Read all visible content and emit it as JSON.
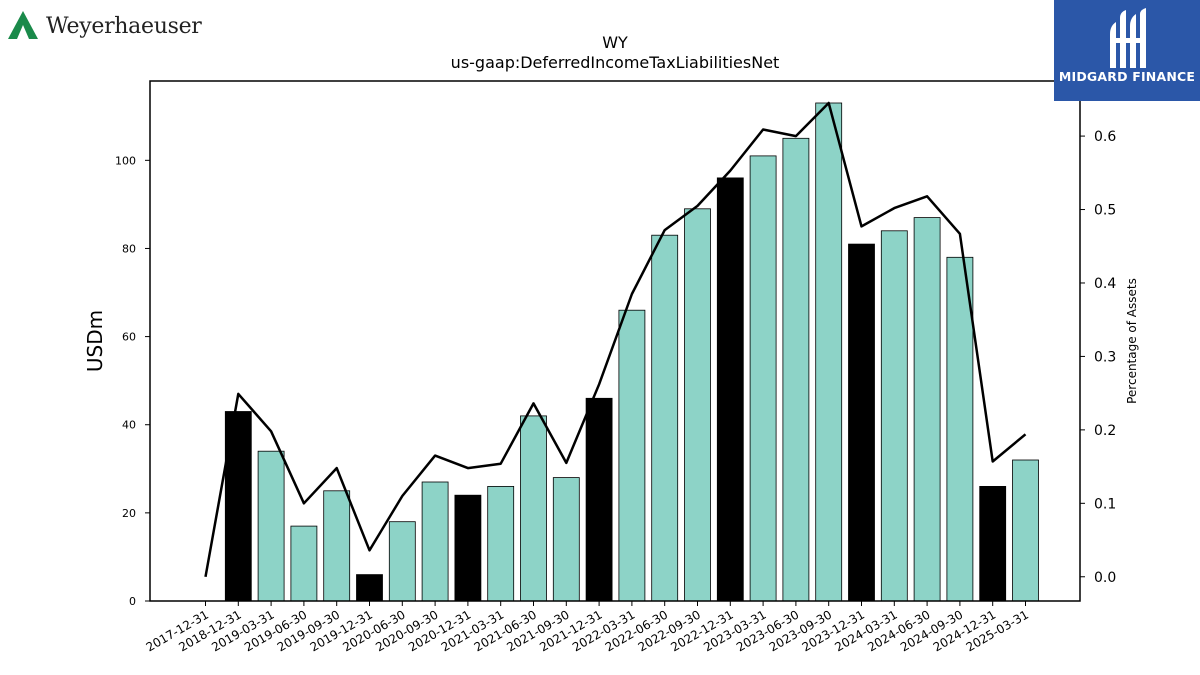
{
  "logos": {
    "company": "Weyerhaeuser",
    "brand": "MIDGARD FINANCE"
  },
  "colors": {
    "bar_quarter": "#8dd3c7",
    "bar_year_end": "#000000",
    "line": "#000000",
    "company_logo": "#1a8a4a",
    "brand_background": "#2b57a8"
  },
  "chart_data": {
    "type": "bar",
    "title": "WY",
    "subtitle": "us-gaap:DeferredIncomeTaxLiabilitiesNet",
    "ylabel": "USDm",
    "y2label": "Percentage of Assets",
    "ylim": [
      0,
      118
    ],
    "y2lim": [
      -0.033,
      0.675
    ],
    "yticks": [
      0,
      20,
      40,
      60,
      80,
      100
    ],
    "y2ticks": [
      "0.0",
      "0.1",
      "0.2",
      "0.3",
      "0.4",
      "0.5",
      "0.6"
    ],
    "categories": [
      "2017-12-31",
      "2018-12-31",
      "2019-03-31",
      "2019-06-30",
      "2019-09-30",
      "2019-12-31",
      "2020-06-30",
      "2020-09-30",
      "2020-12-31",
      "2021-03-31",
      "2021-06-30",
      "2021-09-30",
      "2021-12-31",
      "2022-03-31",
      "2022-06-30",
      "2022-09-30",
      "2022-12-31",
      "2023-03-31",
      "2023-06-30",
      "2023-09-30",
      "2023-12-31",
      "2024-03-31",
      "2024-06-30",
      "2024-09-30",
      "2024-12-31",
      "2025-03-31"
    ],
    "series": [
      {
        "type": "bar",
        "values": [
          null,
          43,
          34,
          17,
          25,
          6,
          18,
          27,
          24,
          26,
          42,
          28,
          46,
          66,
          83,
          89,
          96,
          101,
          105,
          113,
          81,
          84,
          87,
          78,
          26,
          32
        ],
        "year_end": [
          false,
          true,
          false,
          false,
          false,
          true,
          false,
          false,
          true,
          false,
          false,
          false,
          true,
          false,
          false,
          false,
          true,
          false,
          false,
          false,
          true,
          false,
          false,
          false,
          true,
          false
        ]
      },
      {
        "type": "line",
        "axis": "right",
        "values": [
          0.0,
          0.249,
          0.198,
          0.1,
          0.148,
          0.036,
          0.11,
          0.165,
          0.148,
          0.154,
          0.236,
          0.155,
          0.262,
          0.385,
          0.472,
          0.505,
          0.553,
          0.609,
          0.6,
          0.645,
          0.477,
          0.502,
          0.518,
          0.467,
          0.157,
          0.194
        ]
      }
    ]
  }
}
